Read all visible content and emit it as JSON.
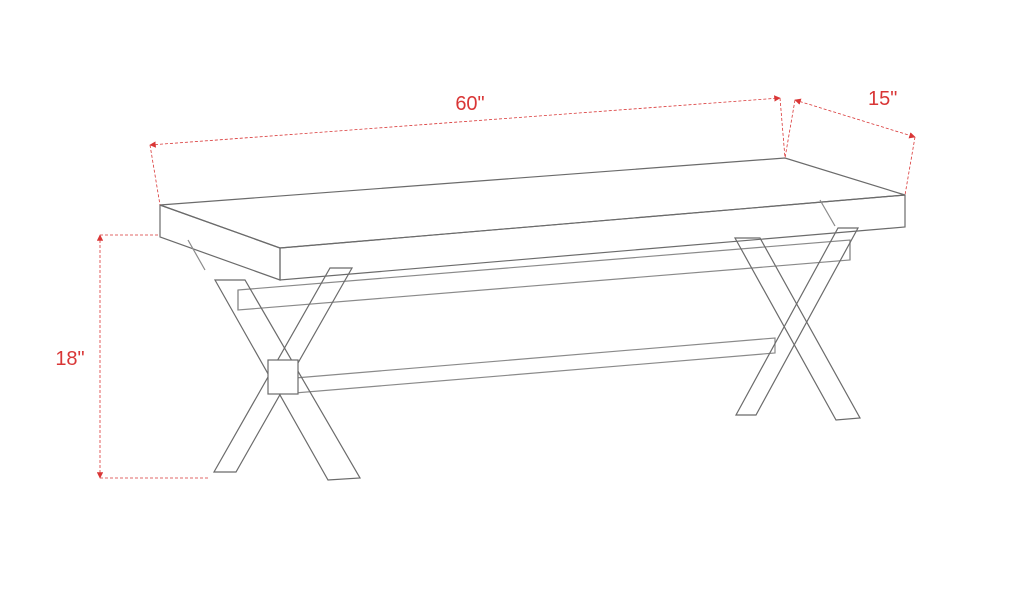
{
  "diagram": {
    "type": "technical-drawing",
    "background_color": "#ffffff",
    "dimensions": {
      "length": {
        "label": "60\"",
        "value": 60
      },
      "depth": {
        "label": "15\"",
        "value": 15
      },
      "height": {
        "label": "18\"",
        "value": 18
      }
    },
    "colors": {
      "outline": "#6b6b6b",
      "outline_light": "#8a8a8a",
      "dimension_line": "#d93636",
      "dimension_text": "#d93636",
      "arrow": "#d93636"
    },
    "stroke": {
      "outline_width": 1.2,
      "dim_line_width": 0.8,
      "dash_pattern": "3 2"
    },
    "fonts": {
      "dim_label_size": 20,
      "dim_label_weight": "normal"
    }
  }
}
